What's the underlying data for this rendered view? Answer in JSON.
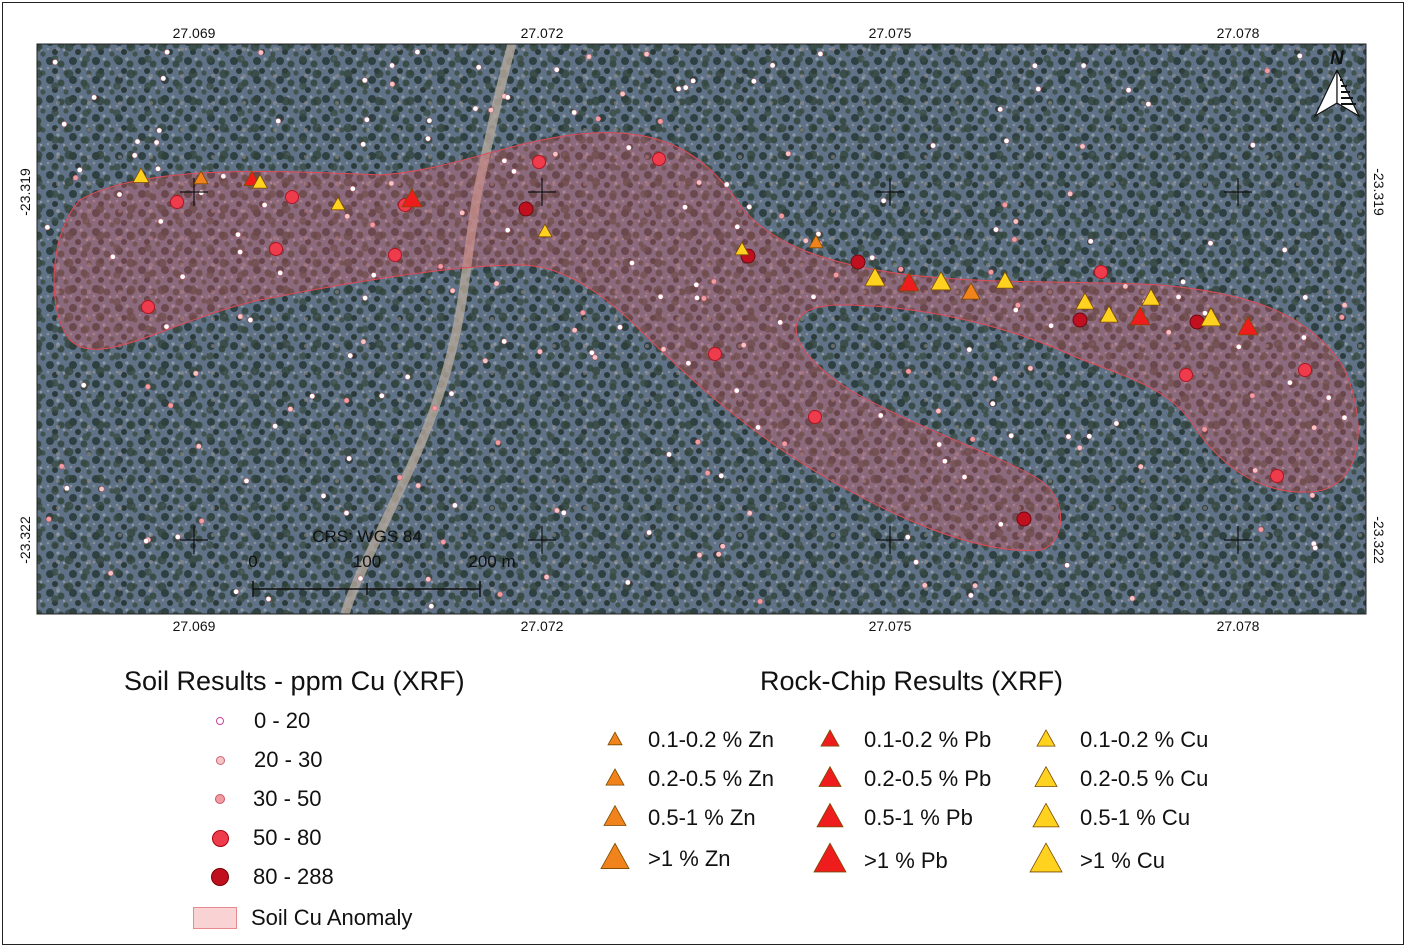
{
  "map": {
    "top_ticks": [
      "27.069",
      "27.072",
      "27.075",
      "27.078"
    ],
    "bottom_ticks": [
      "27.069",
      "27.072",
      "27.075",
      "27.078"
    ],
    "left_ticks": [
      "-23.319",
      "-23.322"
    ],
    "right_ticks": [
      "-23.319",
      "-23.322"
    ],
    "crs_label": "CRS: WGS 84",
    "scale_labels": [
      "0",
      "100",
      "200 m"
    ],
    "north_label": "N"
  },
  "soil_legend": {
    "title": "Soil Results - ppm Cu (XRF)",
    "items": [
      {
        "label": "0 - 20",
        "color": "#ffffff"
      },
      {
        "label": "20 - 30",
        "color": "#f7c4c6"
      },
      {
        "label": "30 - 50",
        "color": "#f19ca1"
      },
      {
        "label": "50 - 80",
        "color": "#ee3c4d"
      },
      {
        "label": "80 - 288",
        "color": "#c0101f"
      }
    ],
    "anomaly_label": "Soil Cu Anomaly"
  },
  "rock_legend": {
    "title": "Rock-Chip Results (XRF)",
    "zn": {
      "color": "#f0831b",
      "items": [
        "0.1-0.2 % Zn",
        "0.2-0.5 % Zn",
        "0.5-1 % Zn",
        ">1 % Zn"
      ]
    },
    "pb": {
      "color": "#ee1c1c",
      "items": [
        "0.1-0.2 % Pb",
        "0.2-0.5 % Pb",
        "0.5-1 % Pb",
        ">1 % Pb"
      ]
    },
    "cu": {
      "color": "#ffd21f",
      "items": [
        "0.1-0.2 % Cu",
        "0.2-0.5 % Cu",
        "0.5-1 % Cu",
        ">1 % Cu"
      ]
    }
  }
}
